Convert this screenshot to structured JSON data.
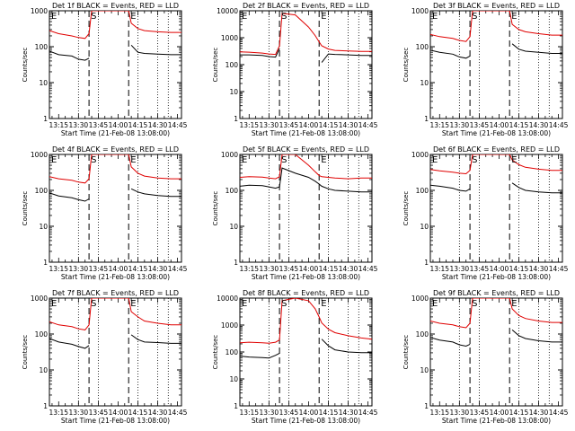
{
  "colors": {
    "events": "#000000",
    "lld": "#e00000",
    "axis": "#000000"
  },
  "chart_data": [
    {
      "type": "line",
      "title": "Det 1f BLACK = Events, RED = LLD",
      "xlabel": "Start Time (21-Feb-08 13:08:00)",
      "ylabel": "Counts/sec",
      "xlim": [
        "13:08",
        "14:48"
      ],
      "ylim": [
        1,
        1000
      ],
      "yscale": "log",
      "xticks": [
        "13:15",
        "13:30",
        "13:45",
        "14:00",
        "14:15",
        "14:30",
        "14:45"
      ],
      "yticks": [
        "1",
        "10",
        "100",
        "1000"
      ],
      "dotted_lines": [
        "13:08",
        "13:30",
        "13:45",
        "14:15",
        "14:30",
        "14:38"
      ],
      "dashed_lines": [
        "13:38",
        "14:08"
      ],
      "markers": [
        {
          "time": "13:08",
          "label": "E"
        },
        {
          "time": "13:38",
          "label": "S"
        },
        {
          "time": "14:08",
          "label": "E"
        }
      ],
      "x": [
        "13:08",
        "13:15",
        "13:25",
        "13:30",
        "13:35",
        "13:38",
        "13:40",
        "14:08",
        "14:10",
        "14:15",
        "14:20",
        "14:30",
        "14:40",
        "14:48"
      ],
      "series": [
        {
          "name": "Events",
          "values": [
            75,
            60,
            55,
            45,
            42,
            48,
            null,
            null,
            110,
            70,
            65,
            62,
            60,
            60
          ]
        },
        {
          "name": "LLD",
          "values": [
            280,
            230,
            200,
            180,
            170,
            230,
            1000,
            1000,
            450,
            320,
            280,
            260,
            250,
            250
          ]
        }
      ]
    },
    {
      "type": "line",
      "title": "Det 2f BLACK = Events, RED = LLD",
      "xlabel": "Start Time (21-Feb-08 13:08:00)",
      "ylabel": "Counts/sec",
      "xlim": [
        "13:08",
        "14:48"
      ],
      "ylim": [
        1,
        10000
      ],
      "yscale": "log",
      "xticks": [
        "13:15",
        "13:30",
        "13:45",
        "14:00",
        "14:15",
        "14:30",
        "14:45"
      ],
      "yticks": [
        "1",
        "10",
        "100",
        "1000",
        "10000"
      ],
      "dotted_lines": [
        "13:08",
        "13:30",
        "13:45",
        "14:15",
        "14:30",
        "14:38"
      ],
      "dashed_lines": [
        "13:38",
        "14:08"
      ],
      "markers": [
        {
          "time": "13:08",
          "label": "E"
        },
        {
          "time": "13:38",
          "label": "S"
        },
        {
          "time": "14:08",
          "label": "E"
        }
      ],
      "x": [
        "13:08",
        "13:15",
        "13:25",
        "13:30",
        "13:35",
        "13:38",
        "13:40",
        "13:50",
        "14:00",
        "14:05",
        "14:08",
        "14:10",
        "14:15",
        "14:20",
        "14:30",
        "14:40",
        "14:48"
      ],
      "series": [
        {
          "name": "Events",
          "values": [
            230,
            230,
            220,
            200,
            190,
            400,
            null,
            null,
            null,
            null,
            null,
            120,
            250,
            240,
            230,
            220,
            220
          ]
        },
        {
          "name": "LLD",
          "values": [
            300,
            290,
            270,
            250,
            240,
            500,
            8000,
            7000,
            2500,
            1200,
            700,
            500,
            380,
            340,
            320,
            310,
            310
          ]
        }
      ]
    },
    {
      "type": "line",
      "title": "Det 3f BLACK = Events, RED = LLD",
      "xlabel": "Start Time (21-Feb-08 13:08:00)",
      "ylabel": "Counts/sec",
      "xlim": [
        "13:08",
        "14:48"
      ],
      "ylim": [
        1,
        1000
      ],
      "yscale": "log",
      "xticks": [
        "13:15",
        "13:30",
        "13:45",
        "14:00",
        "14:15",
        "14:30",
        "14:45"
      ],
      "yticks": [
        "1",
        "10",
        "100",
        "1000"
      ],
      "dotted_lines": [
        "13:08",
        "13:30",
        "13:45",
        "14:15",
        "14:30",
        "14:38"
      ],
      "dashed_lines": [
        "13:38",
        "14:08"
      ],
      "markers": [
        {
          "time": "13:08",
          "label": "E"
        },
        {
          "time": "13:38",
          "label": "S"
        },
        {
          "time": "14:08",
          "label": "E"
        }
      ],
      "x": [
        "13:08",
        "13:15",
        "13:25",
        "13:30",
        "13:35",
        "13:38",
        "13:40",
        "14:08",
        "14:10",
        "14:15",
        "14:20",
        "14:30",
        "14:40",
        "14:48"
      ],
      "series": [
        {
          "name": "Events",
          "values": [
            80,
            70,
            62,
            52,
            48,
            55,
            null,
            null,
            120,
            85,
            75,
            70,
            65,
            65
          ]
        },
        {
          "name": "LLD",
          "values": [
            220,
            190,
            170,
            150,
            140,
            190,
            1000,
            1000,
            420,
            300,
            260,
            230,
            210,
            210
          ]
        }
      ]
    },
    {
      "type": "line",
      "title": "Det 4f BLACK = Events, RED = LLD",
      "xlabel": "Start Time (21-Feb-08 13:08:00)",
      "ylabel": "Counts/sec",
      "xlim": [
        "13:08",
        "14:48"
      ],
      "ylim": [
        1,
        1000
      ],
      "yscale": "log",
      "xticks": [
        "13:15",
        "13:30",
        "13:45",
        "14:00",
        "14:15",
        "14:30",
        "14:45"
      ],
      "yticks": [
        "1",
        "10",
        "100",
        "1000"
      ],
      "dotted_lines": [
        "13:08",
        "13:30",
        "13:45",
        "14:15",
        "14:30",
        "14:38"
      ],
      "dashed_lines": [
        "13:38",
        "14:08"
      ],
      "markers": [
        {
          "time": "13:08",
          "label": "E"
        },
        {
          "time": "13:38",
          "label": "S"
        },
        {
          "time": "14:08",
          "label": "E"
        }
      ],
      "x": [
        "13:08",
        "13:15",
        "13:25",
        "13:30",
        "13:35",
        "13:38",
        "13:40",
        "14:08",
        "14:10",
        "14:15",
        "14:20",
        "14:30",
        "14:40",
        "14:48"
      ],
      "series": [
        {
          "name": "Events",
          "values": [
            85,
            70,
            62,
            55,
            50,
            58,
            null,
            null,
            110,
            90,
            80,
            72,
            68,
            68
          ]
        },
        {
          "name": "LLD",
          "values": [
            240,
            210,
            190,
            170,
            160,
            210,
            1000,
            1000,
            450,
            300,
            250,
            220,
            210,
            210
          ]
        }
      ]
    },
    {
      "type": "line",
      "title": "Det 5f BLACK = Events, RED = LLD",
      "xlabel": "Start Time (21-Feb-08 13:08:00)",
      "ylabel": "Counts/sec",
      "xlim": [
        "13:08",
        "14:48"
      ],
      "ylim": [
        1,
        1000
      ],
      "yscale": "log",
      "xticks": [
        "13:15",
        "13:30",
        "13:45",
        "14:00",
        "14:15",
        "14:30",
        "14:45"
      ],
      "yticks": [
        "1",
        "10",
        "100",
        "1000"
      ],
      "dotted_lines": [
        "13:08",
        "13:30",
        "13:45",
        "14:15",
        "14:30",
        "14:38"
      ],
      "dashed_lines": [
        "13:38",
        "14:08"
      ],
      "markers": [
        {
          "time": "13:08",
          "label": "E"
        },
        {
          "time": "13:38",
          "label": "S"
        },
        {
          "time": "14:08",
          "label": "E"
        }
      ],
      "x": [
        "13:08",
        "13:15",
        "13:25",
        "13:30",
        "13:35",
        "13:38",
        "13:40",
        "13:50",
        "14:00",
        "14:05",
        "14:08",
        "14:10",
        "14:15",
        "14:20",
        "14:30",
        "14:40",
        "14:48"
      ],
      "series": [
        {
          "name": "Events",
          "values": [
            130,
            140,
            135,
            125,
            115,
            125,
            420,
            300,
            230,
            180,
            150,
            130,
            110,
            100,
            95,
            90,
            90
          ]
        },
        {
          "name": "LLD",
          "values": [
            230,
            240,
            235,
            220,
            210,
            240,
            1000,
            1000,
            500,
            330,
            260,
            240,
            230,
            220,
            210,
            220,
            220
          ]
        }
      ]
    },
    {
      "type": "line",
      "title": "Det 6f BLACK = Events, RED = LLD",
      "xlabel": "Start Time (21-Feb-08 13:08:00)",
      "ylabel": "Counts/sec",
      "xlim": [
        "13:08",
        "14:48"
      ],
      "ylim": [
        1,
        1000
      ],
      "yscale": "log",
      "xticks": [
        "13:15",
        "13:30",
        "13:45",
        "14:00",
        "14:15",
        "14:30",
        "14:45"
      ],
      "yticks": [
        "1",
        "10",
        "100",
        "1000"
      ],
      "dotted_lines": [
        "13:08",
        "13:30",
        "13:45",
        "14:15",
        "14:30",
        "14:38"
      ],
      "dashed_lines": [
        "13:38",
        "14:08"
      ],
      "markers": [
        {
          "time": "13:08",
          "label": "E"
        },
        {
          "time": "13:38",
          "label": "S"
        },
        {
          "time": "14:08",
          "label": "E"
        }
      ],
      "x": [
        "13:08",
        "13:15",
        "13:25",
        "13:30",
        "13:35",
        "13:38",
        "13:40",
        "14:08",
        "14:10",
        "14:15",
        "14:20",
        "14:30",
        "14:40",
        "14:48"
      ],
      "series": [
        {
          "name": "Events",
          "values": [
            140,
            130,
            115,
            100,
            95,
            110,
            null,
            null,
            160,
            120,
            100,
            90,
            85,
            85
          ]
        },
        {
          "name": "LLD",
          "values": [
            380,
            350,
            320,
            300,
            290,
            360,
            1000,
            1000,
            700,
            520,
            440,
            390,
            360,
            360
          ]
        }
      ]
    },
    {
      "type": "line",
      "title": "Det 7f BLACK = Events, RED = LLD",
      "xlabel": "Start Time (21-Feb-08 13:08:00)",
      "ylabel": "Counts/sec",
      "xlim": [
        "13:08",
        "14:48"
      ],
      "ylim": [
        1,
        1000
      ],
      "yscale": "log",
      "xticks": [
        "13:15",
        "13:30",
        "13:45",
        "14:00",
        "14:15",
        "14:30",
        "14:45"
      ],
      "yticks": [
        "1",
        "10",
        "100",
        "1000"
      ],
      "dotted_lines": [
        "13:08",
        "13:30",
        "13:45",
        "14:15",
        "14:30",
        "14:38"
      ],
      "dashed_lines": [
        "13:38",
        "14:08"
      ],
      "markers": [
        {
          "time": "13:08",
          "label": "E"
        },
        {
          "time": "13:38",
          "label": "S"
        },
        {
          "time": "14:08",
          "label": "E"
        }
      ],
      "x": [
        "13:08",
        "13:15",
        "13:25",
        "13:30",
        "13:35",
        "13:38",
        "13:40",
        "14:08",
        "14:10",
        "14:15",
        "14:20",
        "14:30",
        "14:40",
        "14:48"
      ],
      "series": [
        {
          "name": "Events",
          "values": [
            75,
            60,
            52,
            45,
            40,
            48,
            null,
            null,
            95,
            70,
            60,
            58,
            55,
            55
          ]
        },
        {
          "name": "LLD",
          "values": [
            220,
            180,
            160,
            140,
            130,
            180,
            1000,
            1000,
            420,
            300,
            230,
            200,
            180,
            180
          ]
        }
      ]
    },
    {
      "type": "line",
      "title": "Det 8f BLACK = Events, RED = LLD",
      "xlabel": "Start Time (21-Feb-08 13:08:00)",
      "ylabel": "Counts/sec",
      "xlim": [
        "13:08",
        "14:48"
      ],
      "ylim": [
        1,
        10000
      ],
      "yscale": "log",
      "xticks": [
        "13:15",
        "13:30",
        "13:45",
        "14:00",
        "14:15",
        "14:30",
        "14:45"
      ],
      "yticks": [
        "1",
        "10",
        "100",
        "1000",
        "10000"
      ],
      "dotted_lines": [
        "13:08",
        "13:30",
        "13:45",
        "14:15",
        "14:30",
        "14:38"
      ],
      "dashed_lines": [
        "13:38",
        "14:08"
      ],
      "markers": [
        {
          "time": "13:08",
          "label": "E"
        },
        {
          "time": "13:38",
          "label": "S"
        },
        {
          "time": "14:08",
          "label": "E"
        }
      ],
      "x": [
        "13:08",
        "13:15",
        "13:25",
        "13:30",
        "13:35",
        "13:38",
        "13:40",
        "13:45",
        "13:50",
        "14:00",
        "14:05",
        "14:08",
        "14:10",
        "14:15",
        "14:20",
        "14:30",
        "14:40",
        "14:48"
      ],
      "series": [
        {
          "name": "Events",
          "values": [
            70,
            65,
            62,
            60,
            75,
            90,
            null,
            null,
            null,
            null,
            null,
            null,
            300,
            170,
            120,
            100,
            95,
            95
          ]
        },
        {
          "name": "LLD",
          "values": [
            220,
            230,
            220,
            210,
            230,
            280,
            8000,
            9000,
            10000,
            8000,
            4000,
            2000,
            1200,
            700,
            520,
            400,
            330,
            300
          ]
        }
      ]
    },
    {
      "type": "line",
      "title": "Det 9f BLACK = Events, RED = LLD",
      "xlabel": "Start Time (21-Feb-08 13:08:00)",
      "ylabel": "Counts/sec",
      "xlim": [
        "13:08",
        "14:48"
      ],
      "ylim": [
        1,
        1000
      ],
      "yscale": "log",
      "xticks": [
        "13:15",
        "13:30",
        "13:45",
        "14:00",
        "14:15",
        "14:30",
        "14:45"
      ],
      "yticks": [
        "1",
        "10",
        "100",
        "1000"
      ],
      "dotted_lines": [
        "13:08",
        "13:30",
        "13:45",
        "14:15",
        "14:30",
        "14:38"
      ],
      "dashed_lines": [
        "13:38",
        "14:08"
      ],
      "markers": [
        {
          "time": "13:08",
          "label": "E"
        },
        {
          "time": "13:38",
          "label": "S"
        },
        {
          "time": "14:08",
          "label": "E"
        }
      ],
      "x": [
        "13:08",
        "13:15",
        "13:25",
        "13:30",
        "13:35",
        "13:38",
        "13:40",
        "14:08",
        "14:10",
        "14:15",
        "14:20",
        "14:30",
        "14:40",
        "14:48"
      ],
      "series": [
        {
          "name": "Events",
          "values": [
            80,
            68,
            60,
            50,
            46,
            52,
            null,
            null,
            130,
            90,
            75,
            65,
            60,
            60
          ]
        },
        {
          "name": "LLD",
          "values": [
            230,
            200,
            180,
            160,
            150,
            200,
            1000,
            1000,
            500,
            330,
            270,
            230,
            210,
            210
          ]
        }
      ]
    }
  ]
}
